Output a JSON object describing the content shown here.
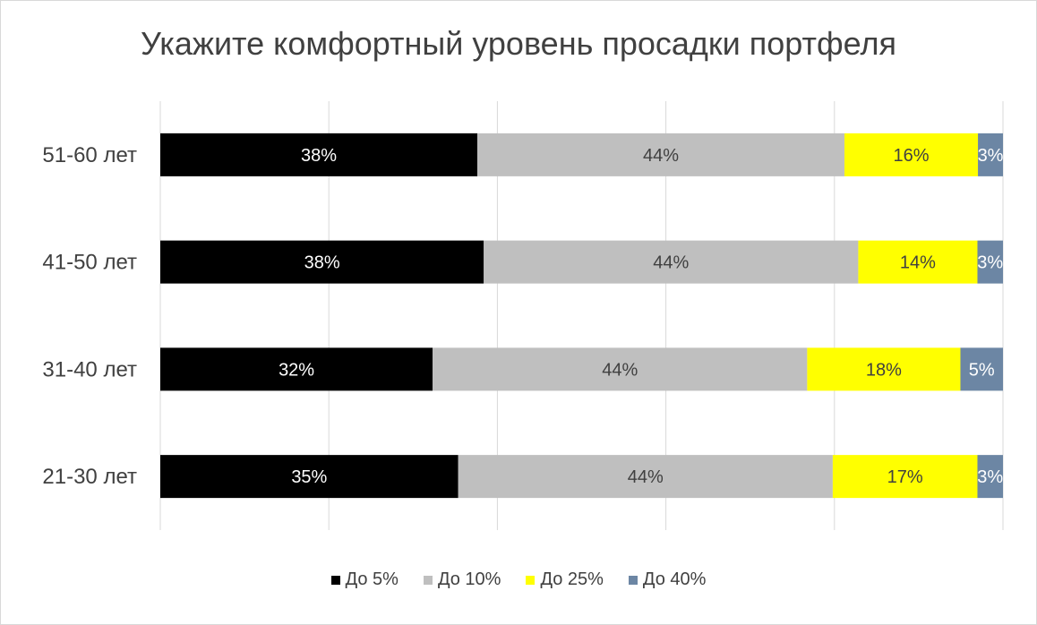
{
  "chart_data": {
    "type": "bar",
    "orientation": "horizontal",
    "stacked": true,
    "title": "Укажите комфортный уровень просадки портфеля",
    "categories": [
      "51-60 лет",
      "41-50 лет",
      "31-40 лет",
      "21-30 лет"
    ],
    "series": [
      {
        "name": "До 5%",
        "color": "#000000",
        "label_color": "#ffffff",
        "values": [
          38,
          38,
          32,
          35
        ]
      },
      {
        "name": "До 10%",
        "color": "#bfbfbf",
        "label_color": "#404040",
        "values": [
          44,
          44,
          44,
          44
        ]
      },
      {
        "name": "До 25%",
        "color": "#ffff00",
        "label_color": "#404040",
        "values": [
          16,
          14,
          18,
          17
        ]
      },
      {
        "name": "До 40%",
        "color": "#6c86a4",
        "label_color": "#ffffff",
        "values": [
          3,
          3,
          5,
          3
        ]
      }
    ],
    "data_labels": [
      [
        "38%",
        "44%",
        "16%",
        "3%"
      ],
      [
        "38%",
        "44%",
        "14%",
        "3%"
      ],
      [
        "32%",
        "44%",
        "18%",
        "5%"
      ],
      [
        "35%",
        "44%",
        "17%",
        "3%"
      ]
    ],
    "grid": true,
    "legend": "bottom"
  }
}
